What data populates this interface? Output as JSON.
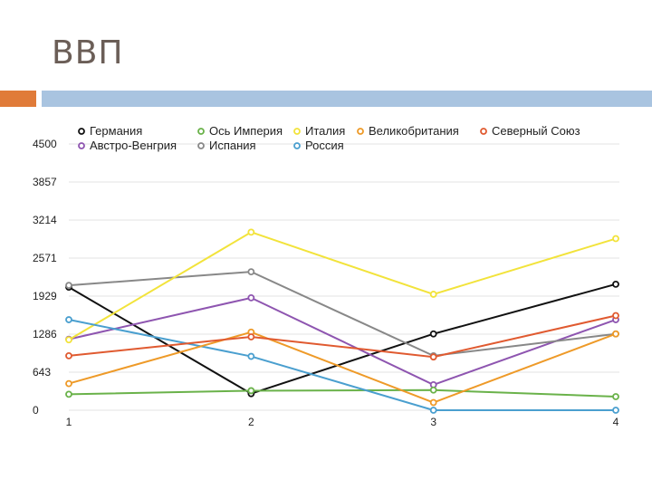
{
  "slide": {
    "title": "ВВП"
  },
  "colors": {
    "accent_orange": "#e07b39",
    "accent_blue": "#a9c4e0"
  },
  "chart_data": {
    "type": "line",
    "title": "",
    "xlabel": "",
    "ylabel": "",
    "categories": [
      "1",
      "2",
      "3",
      "4"
    ],
    "yticks": [
      "0",
      "643",
      "1286",
      "1929",
      "2571",
      "3214",
      "3857",
      "4500"
    ],
    "ylim": [
      0,
      4500
    ],
    "legend_position": "top",
    "series": [
      {
        "name": "Германия",
        "color": "#111111",
        "values": [
          2080,
          280,
          1290,
          2130
        ]
      },
      {
        "name": "Австро-Венгрия",
        "color": "#8e55b0",
        "values": [
          1200,
          1900,
          430,
          1530
        ]
      },
      {
        "name": "Ось Империя",
        "color": "#6ab24a",
        "values": [
          270,
          330,
          340,
          230
        ]
      },
      {
        "name": "Испания",
        "color": "#888888",
        "values": [
          2110,
          2340,
          920,
          1290
        ]
      },
      {
        "name": "Италия",
        "color": "#f2e33b",
        "values": [
          1190,
          3010,
          1960,
          2900
        ]
      },
      {
        "name": "Россия",
        "color": "#4a9fcf",
        "values": [
          1530,
          910,
          0,
          0
        ]
      },
      {
        "name": "Великобритания",
        "color": "#ee9a28",
        "values": [
          450,
          1320,
          130,
          1290
        ]
      },
      {
        "name": "Северный Союз",
        "color": "#e05a30",
        "values": [
          920,
          1240,
          900,
          1600
        ]
      }
    ]
  }
}
